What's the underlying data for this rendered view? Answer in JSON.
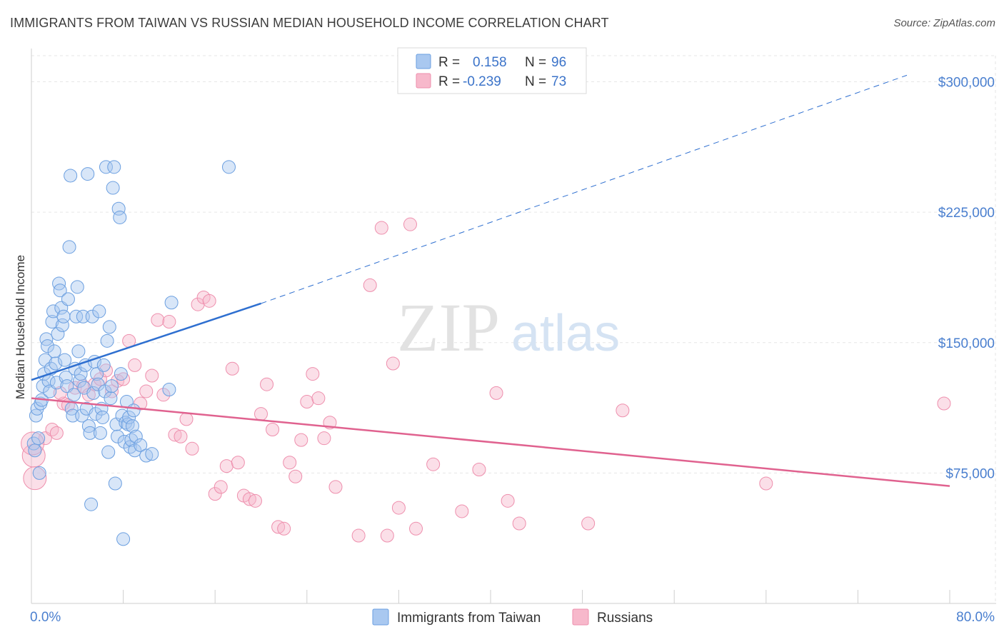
{
  "title": "IMMIGRANTS FROM TAIWAN VS RUSSIAN MEDIAN HOUSEHOLD INCOME CORRELATION CHART",
  "source": "Source: ZipAtlas.com",
  "watermark": {
    "zip": "ZIP",
    "atlas": "atlas"
  },
  "legend": {
    "r_label": "R =",
    "n_label": "N =",
    "rows": [
      {
        "r": "0.158",
        "n": "96",
        "color": "#a9c8f0"
      },
      {
        "r": "-0.239",
        "n": "73",
        "color": "#f7b8cb"
      }
    ]
  },
  "bottom_legend": [
    {
      "label": "Immigrants from Taiwan",
      "color": "#a9c8f0"
    },
    {
      "label": "Russians",
      "color": "#f7b8cb"
    }
  ],
  "chart_data": {
    "type": "scatter",
    "title": "IMMIGRANTS FROM TAIWAN VS RUSSIAN MEDIAN HOUSEHOLD INCOME CORRELATION CHART",
    "xlabel": "",
    "ylabel": "Median Household Income",
    "xlim": [
      0,
      80
    ],
    "ylim": [
      0,
      315000
    ],
    "x_tick_labels": [
      "0.0%",
      "80.0%"
    ],
    "y_ticks": [
      75000,
      150000,
      225000,
      300000
    ],
    "y_tick_labels": [
      "$75,000",
      "$150,000",
      "$225,000",
      "$300,000"
    ],
    "grid": true,
    "legend_position": "top-center",
    "series": [
      {
        "name": "Immigrants from Taiwan",
        "color": "#a9c8f0",
        "edge": "#6b9fe0",
        "trend": {
          "x": [
            0,
            20
          ],
          "y": [
            128500,
            172500
          ],
          "extend_to": [
            80,
            305000
          ],
          "color": "#2e6fd0"
        },
        "points": [
          [
            0.2,
            92000
          ],
          [
            0.3,
            88000
          ],
          [
            0.4,
            108000
          ],
          [
            0.5,
            112000
          ],
          [
            0.6,
            95000
          ],
          [
            0.7,
            75000
          ],
          [
            0.8,
            115000
          ],
          [
            0.9,
            117000
          ],
          [
            1.0,
            125000
          ],
          [
            1.1,
            132000
          ],
          [
            1.2,
            140000
          ],
          [
            1.3,
            152000
          ],
          [
            1.4,
            148000
          ],
          [
            1.5,
            128000
          ],
          [
            1.6,
            122000
          ],
          [
            1.7,
            135000
          ],
          [
            1.8,
            162000
          ],
          [
            1.9,
            168000
          ],
          [
            2.0,
            145000
          ],
          [
            2.1,
            138000
          ],
          [
            2.2,
            127000
          ],
          [
            2.3,
            155000
          ],
          [
            2.4,
            184000
          ],
          [
            2.5,
            180000
          ],
          [
            2.6,
            170000
          ],
          [
            2.7,
            160000
          ],
          [
            2.8,
            165000
          ],
          [
            2.9,
            140000
          ],
          [
            3.0,
            130000
          ],
          [
            3.1,
            125000
          ],
          [
            3.2,
            175000
          ],
          [
            3.3,
            205000
          ],
          [
            3.4,
            246000
          ],
          [
            3.5,
            112000
          ],
          [
            3.6,
            108000
          ],
          [
            3.7,
            120000
          ],
          [
            3.8,
            135000
          ],
          [
            3.9,
            165000
          ],
          [
            4.0,
            182000
          ],
          [
            4.1,
            145000
          ],
          [
            4.2,
            128000
          ],
          [
            4.3,
            132000
          ],
          [
            4.4,
            108000
          ],
          [
            4.5,
            165000
          ],
          [
            4.6,
            124000
          ],
          [
            4.7,
            137000
          ],
          [
            4.8,
            112000
          ],
          [
            4.9,
            247000
          ],
          [
            5.0,
            102000
          ],
          [
            5.1,
            98000
          ],
          [
            5.2,
            57000
          ],
          [
            5.3,
            165000
          ],
          [
            5.4,
            121000
          ],
          [
            5.5,
            139000
          ],
          [
            5.6,
            109000
          ],
          [
            5.7,
            132000
          ],
          [
            5.8,
            126000
          ],
          [
            5.9,
            168000
          ],
          [
            6.0,
            98000
          ],
          [
            6.1,
            112000
          ],
          [
            6.2,
            107000
          ],
          [
            6.3,
            137000
          ],
          [
            6.4,
            122000
          ],
          [
            6.5,
            251000
          ],
          [
            6.6,
            151000
          ],
          [
            6.7,
            87000
          ],
          [
            6.8,
            159000
          ],
          [
            6.9,
            118000
          ],
          [
            7.0,
            125000
          ],
          [
            7.1,
            239000
          ],
          [
            7.2,
            251000
          ],
          [
            7.3,
            69000
          ],
          [
            7.4,
            103000
          ],
          [
            7.5,
            96000
          ],
          [
            7.6,
            227000
          ],
          [
            7.7,
            222000
          ],
          [
            7.8,
            132000
          ],
          [
            7.9,
            108000
          ],
          [
            8.0,
            37000
          ],
          [
            8.1,
            93000
          ],
          [
            8.2,
            104000
          ],
          [
            8.3,
            116000
          ],
          [
            8.4,
            103000
          ],
          [
            8.5,
            107000
          ],
          [
            8.6,
            90000
          ],
          [
            8.7,
            94000
          ],
          [
            8.8,
            102000
          ],
          [
            8.9,
            111000
          ],
          [
            9.0,
            88000
          ],
          [
            9.1,
            96000
          ],
          [
            9.5,
            91000
          ],
          [
            10.0,
            85000
          ],
          [
            10.5,
            86000
          ],
          [
            12.0,
            123000
          ],
          [
            12.2,
            173000
          ],
          [
            17.2,
            251000
          ]
        ]
      },
      {
        "name": "Russians",
        "color": "#f7b8cb",
        "edge": "#ee8fad",
        "trend": {
          "x": [
            0,
            80
          ],
          "y": [
            118000,
            67500
          ],
          "color": "#e0628f"
        },
        "points": [
          [
            0.2,
            85000
          ],
          [
            0.3,
            72000
          ],
          [
            1.2,
            95000
          ],
          [
            1.8,
            100000
          ],
          [
            2.2,
            98000
          ],
          [
            2.8,
            115000
          ],
          [
            3.2,
            114000
          ],
          [
            3.8,
            124000
          ],
          [
            4.5,
            125000
          ],
          [
            5.0,
            120000
          ],
          [
            5.5,
            126000
          ],
          [
            6.0,
            129000
          ],
          [
            6.5,
            134000
          ],
          [
            7.0,
            122000
          ],
          [
            7.5,
            128000
          ],
          [
            8.0,
            129000
          ],
          [
            8.5,
            151000
          ],
          [
            9.0,
            137000
          ],
          [
            9.5,
            115000
          ],
          [
            10.0,
            122000
          ],
          [
            10.5,
            131000
          ],
          [
            11.0,
            163000
          ],
          [
            11.5,
            120000
          ],
          [
            12.0,
            162000
          ],
          [
            12.5,
            97000
          ],
          [
            13.0,
            96000
          ],
          [
            13.5,
            106000
          ],
          [
            14.0,
            89000
          ],
          [
            14.5,
            172000
          ],
          [
            15.0,
            176000
          ],
          [
            15.5,
            174000
          ],
          [
            16.0,
            63000
          ],
          [
            16.5,
            67000
          ],
          [
            17.0,
            79000
          ],
          [
            17.5,
            135000
          ],
          [
            18.0,
            81000
          ],
          [
            18.5,
            62000
          ],
          [
            19.0,
            60000
          ],
          [
            19.5,
            59000
          ],
          [
            20.0,
            109000
          ],
          [
            20.5,
            126000
          ],
          [
            21.0,
            100000
          ],
          [
            21.5,
            44000
          ],
          [
            22.0,
            43000
          ],
          [
            22.5,
            81000
          ],
          [
            23.0,
            73000
          ],
          [
            23.5,
            94000
          ],
          [
            24.0,
            116000
          ],
          [
            24.5,
            132000
          ],
          [
            25.0,
            118000
          ],
          [
            25.5,
            95000
          ],
          [
            26.0,
            104000
          ],
          [
            26.5,
            67000
          ],
          [
            28.5,
            39000
          ],
          [
            29.5,
            183000
          ],
          [
            30.5,
            216000
          ],
          [
            31.0,
            39000
          ],
          [
            31.5,
            138000
          ],
          [
            32.0,
            55000
          ],
          [
            33.0,
            218000
          ],
          [
            33.5,
            43000
          ],
          [
            35.0,
            80000
          ],
          [
            37.5,
            53000
          ],
          [
            39.0,
            77000
          ],
          [
            40.5,
            121000
          ],
          [
            41.5,
            59000
          ],
          [
            42.5,
            46000
          ],
          [
            48.5,
            46000
          ],
          [
            51.5,
            111000
          ],
          [
            64.0,
            69000
          ],
          [
            79.5,
            115000
          ],
          [
            0.1,
            92000
          ],
          [
            2.5,
            121000
          ]
        ]
      }
    ]
  }
}
